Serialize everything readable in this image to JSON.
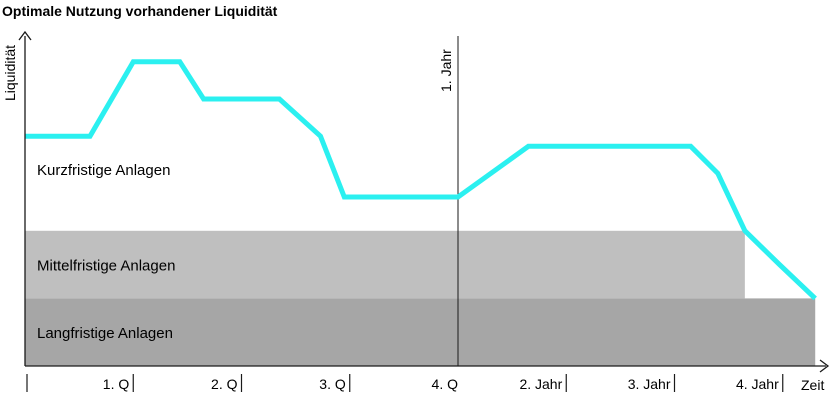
{
  "chart_data": {
    "type": "area",
    "title": "Optimale Nutzung vorhandener Liquidität",
    "ylabel": "Liquidität",
    "xlabel": "Zeit",
    "x_ticks": [
      "1. Q",
      "2. Q",
      "3. Q",
      "4. Q",
      "2. Jahr",
      "3. Jahr",
      "4. Jahr"
    ],
    "xlim": [
      0,
      7.6
    ],
    "ylim": [
      0,
      1
    ],
    "grid": false,
    "marker": {
      "x": 4,
      "label": "1. Jahr"
    },
    "bands": [
      {
        "name": "Langfristige Anlagen",
        "from": 0,
        "to": 0.2,
        "x_end": 7.3,
        "color": "#a6a6a6"
      },
      {
        "name": "Mittelfristige Anlagen",
        "from": 0.2,
        "to": 0.4,
        "x_end": 6.65,
        "color": "#bfbfbf"
      },
      {
        "name": "Kurzfristige Anlagen",
        "from": 0.4,
        "to": null,
        "x_end": null,
        "color": "#ffffff"
      }
    ],
    "series": [
      {
        "color": "#2bf0f0",
        "x": [
          0,
          0.6,
          1.0,
          1.43,
          1.65,
          2.35,
          2.73,
          2.95,
          4.0,
          4.65,
          6.15,
          6.4,
          6.65,
          6.97,
          7.3
        ],
        "y": [
          0.68,
          0.68,
          0.9,
          0.9,
          0.79,
          0.79,
          0.68,
          0.5,
          0.5,
          0.65,
          0.65,
          0.57,
          0.4,
          0.3,
          0.2
        ]
      }
    ]
  }
}
